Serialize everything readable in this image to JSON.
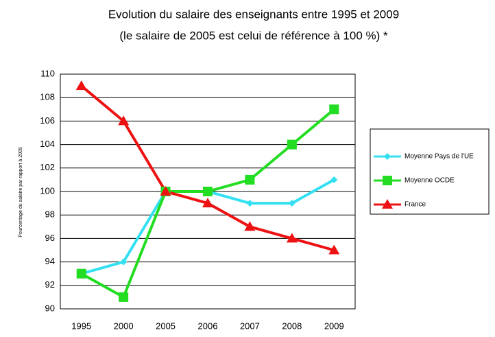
{
  "chart_data": {
    "type": "line",
    "title": "Evolution du salaire des enseignants entre 1995 et 2009",
    "subtitle": "(le salaire de 2005 est celui de référence à 100 %) *",
    "y_label": "Pourcentage du salaire par rapport à 2005",
    "categories": [
      "1995",
      "2000",
      "2005",
      "2006",
      "2007",
      "2008",
      "2009"
    ],
    "series": [
      {
        "name": "Moyenne Pays de l'UE",
        "color": "#33e0f2",
        "marker": "diamond",
        "values": [
          93,
          94,
          100,
          100,
          99,
          99,
          101
        ]
      },
      {
        "name": "Moyenne OCDE",
        "color": "#22dd22",
        "marker": "square",
        "values": [
          93,
          91,
          100,
          100,
          101,
          104,
          107
        ]
      },
      {
        "name": "France",
        "color": "#ee1111",
        "marker": "triangle",
        "values": [
          109,
          106,
          100,
          99,
          97,
          96,
          95
        ]
      }
    ],
    "ylim": [
      90,
      110
    ],
    "yticks": [
      90,
      92,
      94,
      96,
      98,
      100,
      102,
      104,
      106,
      108,
      110
    ],
    "grid": true,
    "legend": "right"
  }
}
